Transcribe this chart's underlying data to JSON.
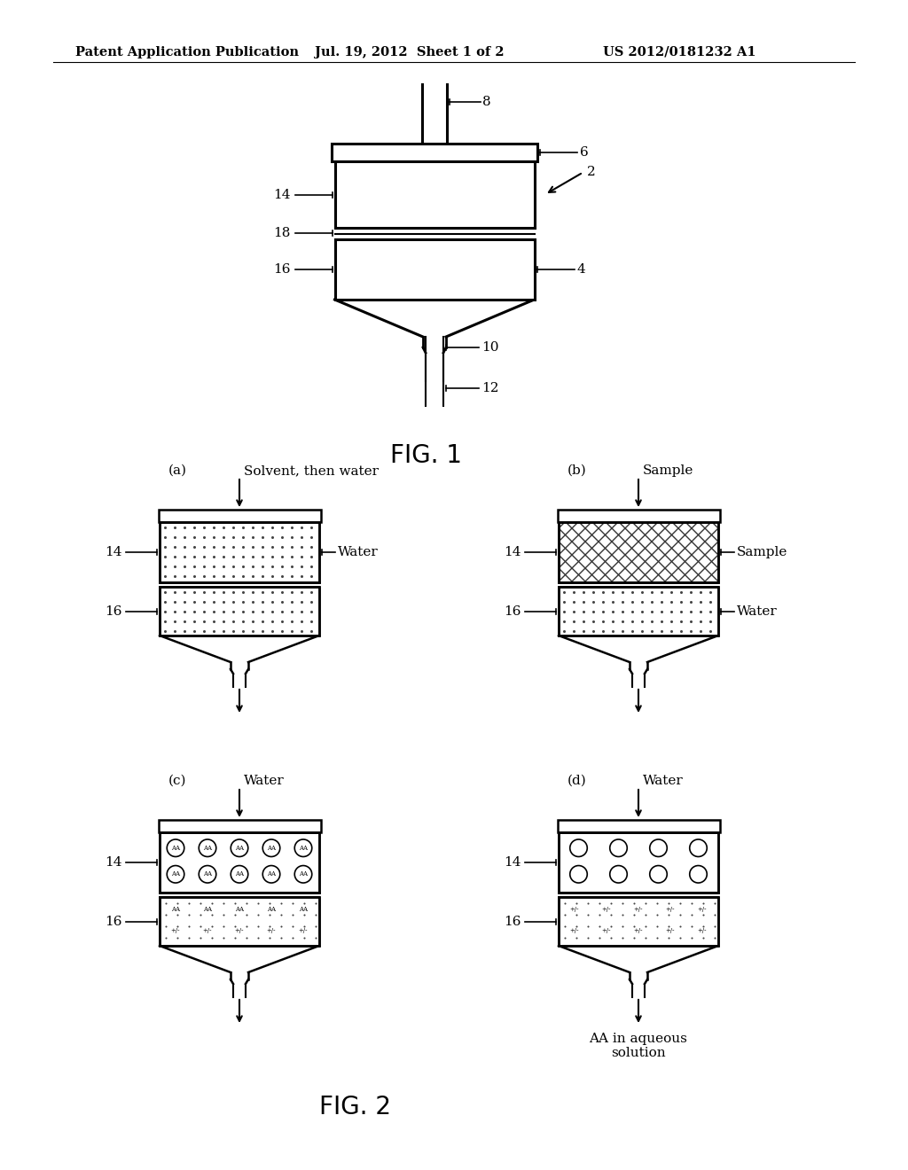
{
  "bg_color": "#ffffff",
  "text_color": "#000000",
  "header_left": "Patent Application Publication",
  "header_mid": "Jul. 19, 2012  Sheet 1 of 2",
  "header_right": "US 2012/0181232 A1",
  "fig1_label": "FIG. 1",
  "fig2_label": "FIG. 2"
}
